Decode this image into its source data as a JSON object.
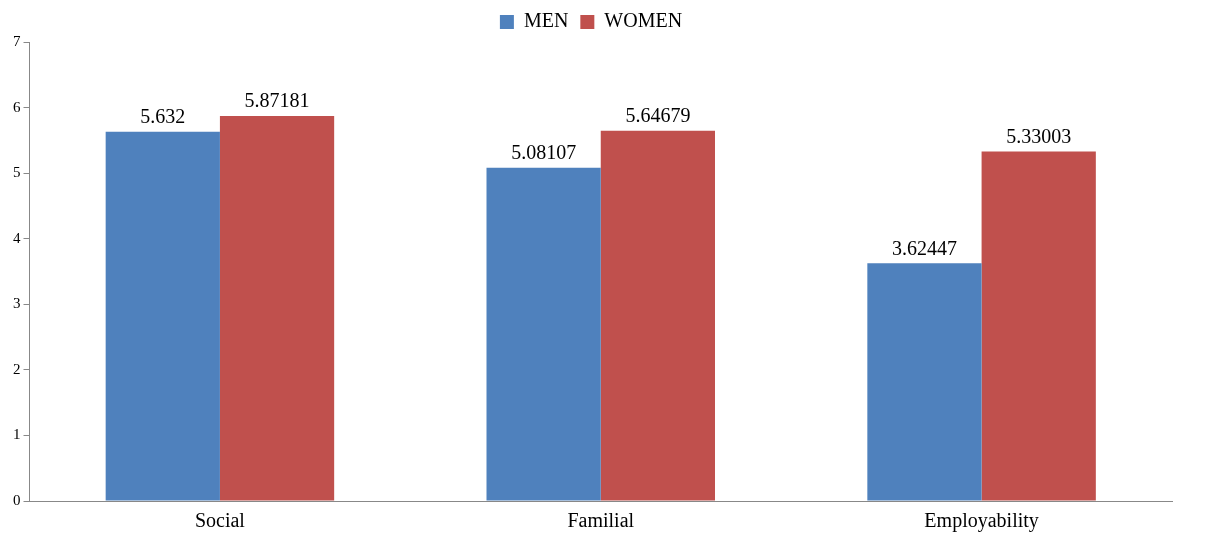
{
  "chart_data": {
    "type": "bar",
    "categories": [
      "Social",
      "Familial",
      "Employability"
    ],
    "series": [
      {
        "name": "MEN",
        "color": "#4f81bd",
        "values": [
          5.632,
          5.08107,
          3.62447
        ]
      },
      {
        "name": "WOMEN",
        "color": "#c0504d",
        "values": [
          5.87181,
          5.64679,
          5.33003
        ]
      }
    ],
    "ylim": [
      0,
      7
    ],
    "yticks": [
      0,
      1,
      2,
      3,
      4,
      5,
      6,
      7
    ],
    "grid": false,
    "legend": "top",
    "data_labels": true
  }
}
